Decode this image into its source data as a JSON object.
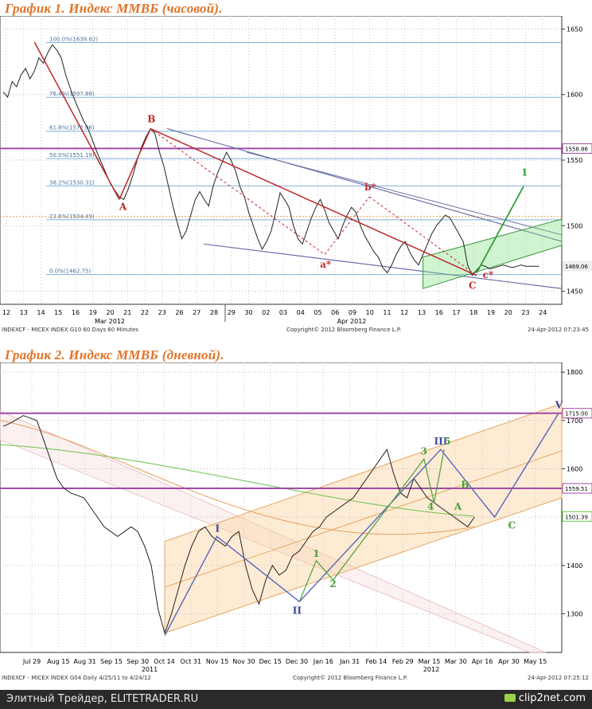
{
  "chart_data": [
    {
      "type": "line",
      "title": "График 1.   Индекс ММВБ (часовой).",
      "y_range": [
        1440,
        1660
      ],
      "y_ticks": [
        "1650",
        "1600",
        "1550",
        "1500",
        "1450"
      ],
      "x_tick_labels": [
        "12",
        "13",
        "14",
        "15",
        "16",
        "19",
        "20",
        "21",
        "22",
        "23",
        "26",
        "27",
        "28",
        "29",
        "30",
        "02",
        "03",
        "04",
        "05",
        "06",
        "09",
        "10",
        "11",
        "12",
        "13",
        "16",
        "17",
        "18",
        "19",
        "20",
        "23",
        "24"
      ],
      "month_labels": [
        "Mar 2012",
        "Apr 2012"
      ],
      "fib_levels": [
        {
          "label": "100.0%(1639.62)",
          "value": 1639.62
        },
        {
          "label": "76.4%(1597.88)",
          "value": 1597.88
        },
        {
          "label": "61.8%(1572.06)",
          "value": 1572.06
        },
        {
          "label": "50.0%(1551.19)",
          "value": 1551.19
        },
        {
          "label": "38.2%(1530.31)",
          "value": 1530.31
        },
        {
          "label": "23.6%(1504.49)",
          "value": 1504.49
        },
        {
          "label": "0.0%(1462.75)",
          "value": 1462.75
        }
      ],
      "price_tags": [
        {
          "label": "1558.86",
          "value": 1558.86,
          "color": "#a04ca8"
        },
        {
          "label": "1469.06",
          "value": 1469.06,
          "color": "#eeeeee"
        }
      ],
      "wave_labels": [
        "A",
        "B",
        "C",
        "a*",
        "b*",
        "c*",
        "1"
      ],
      "footer_left": "INDEXCF - MICEX INDEX   G10   60 Days  60 Minutes",
      "footer_center": "Copyright© 2012 Bloomberg Finance L.P.",
      "footer_right": "24-Apr-2012 07:23:45",
      "series": [
        {
          "x": [
            0,
            2,
            4,
            6,
            8,
            10,
            12,
            14,
            16,
            18,
            20,
            22,
            24,
            26,
            28,
            30,
            32,
            34,
            36,
            38,
            40,
            42,
            44,
            46,
            48,
            50,
            52,
            54,
            56,
            58,
            60,
            62,
            64,
            66,
            68,
            70,
            72,
            74,
            76,
            78,
            80,
            82,
            84,
            86,
            88,
            90,
            92,
            94,
            96,
            98,
            100,
            102,
            104,
            106,
            108,
            110,
            112,
            114,
            116,
            118,
            120,
            122,
            124,
            126,
            128,
            130,
            132,
            134,
            136,
            138,
            140,
            142,
            144,
            146,
            148,
            150,
            152,
            154,
            156,
            158,
            160,
            162,
            164,
            166,
            168,
            170,
            172,
            174,
            176,
            178,
            180,
            182,
            184,
            186,
            188,
            190,
            192,
            194,
            196,
            198,
            200,
            202,
            204,
            206,
            208,
            210,
            212,
            214,
            216,
            218,
            220,
            222,
            224,
            226,
            228,
            230,
            232,
            234,
            236,
            238,
            240
          ],
          "y": [
            1602,
            1598,
            1610,
            1606,
            1615,
            1620,
            1612,
            1618,
            1628,
            1624,
            1632,
            1638,
            1634,
            1628,
            1615,
            1605,
            1596,
            1588,
            1580,
            1574,
            1565,
            1556,
            1548,
            1540,
            1532,
            1527,
            1522,
            1520,
            1528,
            1538,
            1550,
            1560,
            1568,
            1574,
            1570,
            1556,
            1545,
            1530,
            1515,
            1502,
            1490,
            1496,
            1508,
            1520,
            1526,
            1520,
            1515,
            1530,
            1540,
            1548,
            1556,
            1550,
            1542,
            1530,
            1522,
            1510,
            1500,
            1490,
            1482,
            1488,
            1496,
            1510,
            1525,
            1520,
            1514,
            1500,
            1490,
            1486,
            1496,
            1506,
            1514,
            1520,
            1512,
            1502,
            1496,
            1490,
            1500,
            1508,
            1514,
            1510,
            1500,
            1492,
            1486,
            1480,
            1476,
            1468,
            1464,
            1470,
            1478,
            1484,
            1488,
            1480,
            1474,
            1470,
            1478,
            1486,
            1494,
            1500,
            1504,
            1508,
            1506,
            1500,
            1494,
            1488,
            1470,
            1462,
            1466,
            1470,
            1469,
            1467,
            1468,
            1469,
            1470,
            1469,
            1468,
            1469,
            1470,
            1469,
            1469,
            1469,
            1469
          ]
        }
      ]
    },
    {
      "type": "line",
      "title": "График 2.   Индекс ММВБ (дневной).",
      "y_range": [
        1220,
        1820
      ],
      "y_ticks": [
        "1800",
        "1700",
        "1600",
        "1500",
        "1400",
        "1300"
      ],
      "x_tick_labels": [
        "Jul 29",
        "Aug 15",
        "Aug 31",
        "Sep 15",
        "Sep 30",
        "Oct 14",
        "Oct 31",
        "Nov 15",
        "Nov 30",
        "Dec 15",
        "Dec 30",
        "Jan 16",
        "Jan 31",
        "Feb 14",
        "Feb 29",
        "Mar 15",
        "Mar 30",
        "Apr 16",
        "Apr 30",
        "May 15"
      ],
      "year_labels": [
        "2011",
        "2012"
      ],
      "price_tags": [
        {
          "label": "1715.00",
          "value": 1715.0,
          "color": "#a04ca8"
        },
        {
          "label": "1559.51",
          "value": 1559.51,
          "color": "#a04ca8"
        },
        {
          "label": "1501.39",
          "value": 1501.39,
          "color": "#66cc44"
        }
      ],
      "wave_labels": [
        "I",
        "II",
        "III",
        "V",
        "1",
        "2",
        "3",
        "4",
        "5",
        "A",
        "B",
        "C"
      ],
      "footer_left": "INDEXCF - MICEX INDEX   G04  Daily  4/25/11 to 4/24/12",
      "footer_center": "Copyright© 2012 Bloomberg Finance L.P.",
      "footer_right": "24-Apr-2012 07:25:12",
      "series": [
        {
          "x": [
            0,
            4,
            8,
            12,
            16,
            20,
            24,
            28,
            32,
            36,
            40,
            44,
            48,
            52,
            56,
            60,
            64,
            68,
            72,
            76,
            80,
            84,
            88,
            92,
            96,
            100,
            104,
            108,
            112,
            116,
            120,
            124,
            128,
            132,
            136,
            140,
            144,
            148,
            152,
            156,
            160,
            164,
            168,
            172,
            176,
            180,
            184,
            188,
            192,
            196,
            200,
            204,
            208,
            212,
            216,
            220,
            224,
            228,
            232,
            236,
            240,
            244,
            248,
            252,
            256,
            260,
            264,
            268,
            272,
            276,
            280
          ],
          "y": [
            1688,
            1694,
            1702,
            1710,
            1705,
            1700,
            1660,
            1620,
            1580,
            1560,
            1550,
            1545,
            1540,
            1520,
            1500,
            1480,
            1470,
            1460,
            1470,
            1480,
            1470,
            1440,
            1400,
            1310,
            1260,
            1300,
            1350,
            1400,
            1440,
            1470,
            1480,
            1460,
            1450,
            1440,
            1460,
            1470,
            1400,
            1350,
            1320,
            1370,
            1400,
            1380,
            1390,
            1420,
            1430,
            1450,
            1470,
            1480,
            1500,
            1510,
            1520,
            1530,
            1540,
            1560,
            1580,
            1600,
            1620,
            1640,
            1590,
            1550,
            1540,
            1580,
            1560,
            1540,
            1530,
            1520,
            1510,
            1500,
            1490,
            1480,
            1500
          ]
        }
      ]
    }
  ],
  "watermark": {
    "site": "Элитный Трейдер, ELITETRADER.RU",
    "brand": "clip2net.com"
  }
}
